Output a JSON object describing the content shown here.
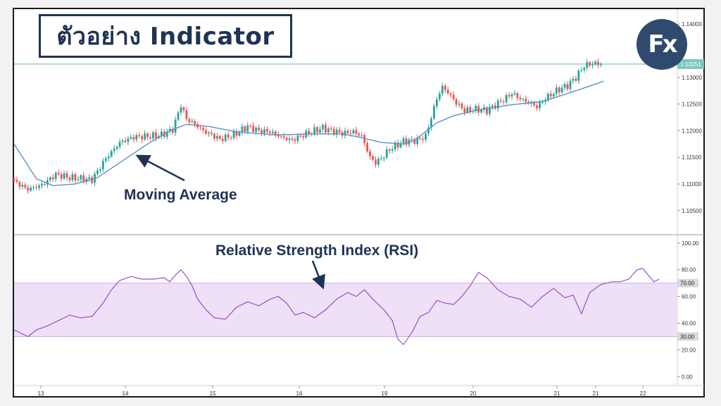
{
  "title": "ตัวอย่าง Indicator",
  "logo_text": "Fx",
  "colors": {
    "up": "#26a69a",
    "down": "#ef5350",
    "ma": "#5b8fc7",
    "rsi": "#9c4fc5",
    "rsi_band": "#ede0f7",
    "annotation": "#1f3355",
    "price_line": "#7fc6c0"
  },
  "chart_data": [
    {
      "type": "candlestick",
      "title": "",
      "x_tick_labels": [
        "13",
        "14",
        "15",
        "16",
        "19",
        "20",
        "21",
        "21",
        "22"
      ],
      "y_tick_labels": [
        "1.14000",
        "1.13000",
        "1.12500",
        "1.12000",
        "1.11500",
        "1.11000",
        "1.10500"
      ],
      "ylim": [
        1.103,
        1.142
      ],
      "current_price_label": "1.13251",
      "current_price": 1.1325,
      "close_path": [
        [
          0,
          1.1105
        ],
        [
          5,
          1.109
        ],
        [
          10,
          1.1098
        ],
        [
          15,
          1.1118
        ],
        [
          20,
          1.1112
        ],
        [
          28,
          1.1108
        ],
        [
          33,
          1.1148
        ],
        [
          38,
          1.1178
        ],
        [
          43,
          1.1188
        ],
        [
          50,
          1.119
        ],
        [
          53,
          1.1192
        ],
        [
          57,
          1.1202
        ],
        [
          60,
          1.1248
        ],
        [
          62,
          1.1222
        ],
        [
          65,
          1.1212
        ],
        [
          68,
          1.12
        ],
        [
          71,
          1.1192
        ],
        [
          74,
          1.1184
        ],
        [
          79,
          1.1192
        ],
        [
          84,
          1.1208
        ],
        [
          88,
          1.12
        ],
        [
          92,
          1.1198
        ],
        [
          96,
          1.1188
        ],
        [
          100,
          1.1182
        ],
        [
          104,
          1.1192
        ],
        [
          108,
          1.12
        ],
        [
          111,
          1.1205
        ],
        [
          114,
          1.12
        ],
        [
          118,
          1.1195
        ],
        [
          122,
          1.1198
        ],
        [
          125,
          1.119
        ],
        [
          128,
          1.115
        ],
        [
          130,
          1.114
        ],
        [
          132,
          1.1148
        ],
        [
          135,
          1.1165
        ],
        [
          140,
          1.118
        ],
        [
          145,
          1.1182
        ],
        [
          148,
          1.119
        ],
        [
          150,
          1.1225
        ],
        [
          152,
          1.126
        ],
        [
          154,
          1.1282
        ],
        [
          156,
          1.1272
        ],
        [
          159,
          1.1252
        ],
        [
          162,
          1.1238
        ],
        [
          166,
          1.124
        ],
        [
          170,
          1.1238
        ],
        [
          173,
          1.1248
        ],
        [
          176,
          1.1258
        ],
        [
          179,
          1.127
        ],
        [
          182,
          1.126
        ],
        [
          186,
          1.125
        ],
        [
          188,
          1.1245
        ],
        [
          191,
          1.126
        ],
        [
          195,
          1.1275
        ],
        [
          199,
          1.1285
        ],
        [
          202,
          1.13
        ],
        [
          205,
          1.1322
        ],
        [
          208,
          1.1326
        ],
        [
          211,
          1.1325
        ]
      ],
      "moving_average": [
        [
          0,
          1.1175
        ],
        [
          8,
          1.111
        ],
        [
          14,
          1.1097
        ],
        [
          22,
          1.11
        ],
        [
          30,
          1.1112
        ],
        [
          38,
          1.114
        ],
        [
          48,
          1.1175
        ],
        [
          56,
          1.12
        ],
        [
          62,
          1.1212
        ],
        [
          70,
          1.1208
        ],
        [
          80,
          1.1198
        ],
        [
          94,
          1.1192
        ],
        [
          108,
          1.1194
        ],
        [
          118,
          1.1194
        ],
        [
          124,
          1.1188
        ],
        [
          132,
          1.1178
        ],
        [
          140,
          1.1175
        ],
        [
          144,
          1.1182
        ],
        [
          152,
          1.1215
        ],
        [
          158,
          1.1228
        ],
        [
          166,
          1.1238
        ],
        [
          178,
          1.1248
        ],
        [
          190,
          1.1255
        ],
        [
          198,
          1.1268
        ],
        [
          206,
          1.1282
        ],
        [
          212,
          1.1293
        ]
      ],
      "annotation": "Moving Average"
    },
    {
      "type": "line",
      "title": "",
      "y_tick_labels": [
        "100.00",
        "80.00",
        "60.00",
        "40.00",
        "20.00",
        "0.00"
      ],
      "ylim": [
        -3,
        102
      ],
      "band_labels": [
        "70.00",
        "30.00"
      ],
      "band": [
        30,
        70
      ],
      "values": [
        [
          0,
          35
        ],
        [
          5,
          30
        ],
        [
          8,
          35
        ],
        [
          12,
          38
        ],
        [
          16,
          42
        ],
        [
          20,
          46
        ],
        [
          24,
          44
        ],
        [
          28,
          45
        ],
        [
          32,
          55
        ],
        [
          35,
          65
        ],
        [
          38,
          72
        ],
        [
          42,
          75
        ],
        [
          46,
          73
        ],
        [
          50,
          73
        ],
        [
          54,
          74
        ],
        [
          56,
          71
        ],
        [
          58,
          76
        ],
        [
          60,
          80
        ],
        [
          62,
          75
        ],
        [
          64,
          68
        ],
        [
          66,
          58
        ],
        [
          69,
          50
        ],
        [
          72,
          44
        ],
        [
          76,
          43
        ],
        [
          80,
          52
        ],
        [
          84,
          56
        ],
        [
          88,
          53
        ],
        [
          92,
          58
        ],
        [
          95,
          60
        ],
        [
          98,
          55
        ],
        [
          101,
          46
        ],
        [
          104,
          48
        ],
        [
          108,
          44
        ],
        [
          112,
          50
        ],
        [
          116,
          58
        ],
        [
          120,
          63
        ],
        [
          123,
          60
        ],
        [
          126,
          65
        ],
        [
          129,
          58
        ],
        [
          133,
          50
        ],
        [
          136,
          42
        ],
        [
          138,
          28
        ],
        [
          140,
          24
        ],
        [
          143,
          33
        ],
        [
          146,
          45
        ],
        [
          149,
          48
        ],
        [
          152,
          57
        ],
        [
          155,
          55
        ],
        [
          158,
          54
        ],
        [
          161,
          60
        ],
        [
          164,
          68
        ],
        [
          167,
          78
        ],
        [
          170,
          74
        ],
        [
          174,
          65
        ],
        [
          178,
          60
        ],
        [
          182,
          58
        ],
        [
          186,
          52
        ],
        [
          190,
          60
        ],
        [
          194,
          66
        ],
        [
          198,
          59
        ],
        [
          201,
          61
        ],
        [
          204,
          47
        ],
        [
          207,
          63
        ],
        [
          211,
          69
        ],
        [
          215,
          71
        ],
        [
          218,
          71
        ],
        [
          221,
          73
        ],
        [
          224,
          80
        ],
        [
          226,
          81
        ],
        [
          228,
          76
        ],
        [
          230,
          71
        ],
        [
          232,
          73
        ]
      ],
      "annotation": "Relative Strength Index (RSI)"
    }
  ]
}
